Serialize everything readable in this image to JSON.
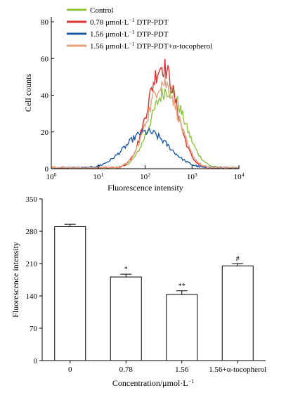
{
  "chart_data": [
    {
      "type": "line",
      "ylabel": "Cell counts",
      "xlabel": "Fluorescence intensity",
      "x_scale": "log",
      "xlim": [
        1,
        10000
      ],
      "ylim": [
        0,
        80
      ],
      "x_ticks": [
        1,
        10,
        100,
        1000,
        10000
      ],
      "x_tick_labels": [
        {
          "base": "10",
          "exp": "0"
        },
        {
          "base": "10",
          "exp": "1"
        },
        {
          "base": "10",
          "exp": "2"
        },
        {
          "base": "10",
          "exp": "3"
        },
        {
          "base": "10",
          "exp": "4"
        }
      ],
      "y_ticks": [
        0,
        20,
        40,
        60,
        80
      ],
      "legend_position": "top-left",
      "series": [
        {
          "name": "Control",
          "legend": {
            "pre": "Control",
            "sup": "",
            "post": ""
          },
          "color": "#8cc63f",
          "peak_x": 300,
          "peak_y": 43,
          "sigma_log": 0.36
        },
        {
          "name": "0.78 μmol·L−1 DTP-PDT",
          "legend": {
            "pre": "0.78 μmol·L",
            "sup": "−1",
            "post": " DTP-PDT"
          },
          "color": "#e03030",
          "peak_x": 230,
          "peak_y": 56,
          "sigma_log": 0.31
        },
        {
          "name": "1.56 μmol·L−1 DTP-PDT",
          "legend": {
            "pre": "1.56 μmol·L",
            "sup": "−1",
            "post": " DTP-PDT"
          },
          "color": "#1f5aa8",
          "peak_x": 110,
          "peak_y": 20,
          "sigma_log": 0.46
        },
        {
          "name": "1.56 μmol·L−1 DTP-PDT+α-tocopherol",
          "legend": {
            "pre": "1.56 μmol·L",
            "sup": "−1",
            "post": " DTP-PDT+α-tocopherol"
          },
          "color": "#e8a07a",
          "peak_x": 240,
          "peak_y": 47,
          "sigma_log": 0.33
        }
      ]
    },
    {
      "type": "bar",
      "ylabel": "Fluorescence intensity",
      "xlabel": {
        "pre": "Concentration/μmol·L",
        "sup": "−1"
      },
      "categories": [
        "0",
        "0.78",
        "1.56",
        "1.56+α-tocopherol"
      ],
      "values": [
        290,
        181,
        143,
        205
      ],
      "errors": [
        5,
        6,
        8,
        5
      ],
      "annotations": [
        "",
        "*",
        "**",
        "#"
      ],
      "ylim": [
        0,
        350
      ],
      "y_ticks": [
        0,
        70,
        140,
        210,
        280,
        350
      ]
    }
  ]
}
